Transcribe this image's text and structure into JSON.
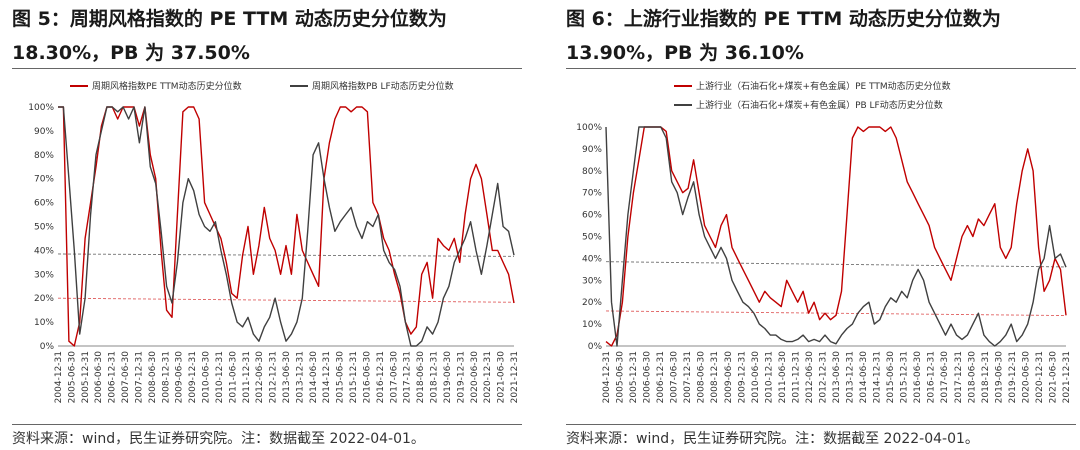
{
  "chart_data": [
    {
      "type": "line",
      "title_line1": "图 5：周期风格指数的 PE TTM 动态历史分位数为",
      "title_line2": "18.30%，PB 为 37.50%",
      "source": "资料来源：wind，民生证券研究院。注：数据截至 2022-04-01。",
      "x_tick_labels": [
        "2004-12-31",
        "2005-06-30",
        "2005-12-31",
        "2006-06-30",
        "2006-12-31",
        "2007-06-30",
        "2007-12-31",
        "2008-06-30",
        "2008-12-31",
        "2009-06-30",
        "2009-12-31",
        "2010-06-30",
        "2010-12-31",
        "2011-06-30",
        "2011-12-31",
        "2012-06-30",
        "2012-12-31",
        "2013-06-30",
        "2013-12-31",
        "2014-06-30",
        "2014-12-31",
        "2015-06-30",
        "2015-12-31",
        "2016-06-30",
        "2016-12-31",
        "2017-06-30",
        "2017-12-31",
        "2018-06-30",
        "2018-12-31",
        "2019-06-30",
        "2019-12-31",
        "2020-06-30",
        "2020-12-31",
        "2021-06-30",
        "2021-12-31"
      ],
      "y_tick_labels": [
        "0%",
        "10%",
        "20%",
        "30%",
        "40%",
        "50%",
        "60%",
        "70%",
        "80%",
        "90%",
        "100%"
      ],
      "ylim": [
        0,
        100
      ],
      "legend_position": "top",
      "colors": {
        "pe": "#c00000",
        "pb": "#404040",
        "pe_ref": "#e06060",
        "pb_ref": "#707070"
      },
      "series": [
        {
          "name": "周期风格指数PE TTM动态历史分位数",
          "color": "#c00000",
          "values": [
            100,
            100,
            2,
            0,
            10,
            45,
            60,
            75,
            92,
            100,
            100,
            95,
            100,
            100,
            100,
            92,
            100,
            80,
            70,
            40,
            15,
            12,
            55,
            98,
            100,
            100,
            95,
            60,
            55,
            50,
            45,
            35,
            22,
            20,
            38,
            50,
            30,
            42,
            58,
            45,
            40,
            30,
            42,
            30,
            55,
            40,
            35,
            30,
            25,
            70,
            85,
            95,
            100,
            100,
            98,
            100,
            100,
            98,
            60,
            55,
            45,
            40,
            30,
            22,
            10,
            5,
            8,
            30,
            35,
            20,
            45,
            42,
            40,
            45,
            35,
            55,
            70,
            76,
            70,
            55,
            40,
            40,
            35,
            30,
            18
          ]
        },
        {
          "name": "周期风格指数PB LF动态历史分位数",
          "color": "#404040",
          "values": [
            100,
            100,
            70,
            40,
            5,
            20,
            55,
            80,
            90,
            100,
            100,
            98,
            100,
            95,
            100,
            85,
            100,
            75,
            68,
            48,
            25,
            18,
            35,
            60,
            70,
            65,
            55,
            50,
            48,
            52,
            40,
            30,
            18,
            10,
            8,
            12,
            5,
            2,
            8,
            12,
            20,
            10,
            2,
            5,
            10,
            20,
            48,
            80,
            85,
            70,
            58,
            48,
            52,
            55,
            58,
            50,
            45,
            52,
            50,
            55,
            40,
            35,
            32,
            25,
            10,
            0,
            0,
            2,
            8,
            5,
            10,
            20,
            25,
            35,
            40,
            45,
            52,
            40,
            30,
            42,
            55,
            68,
            50,
            48,
            38
          ]
        }
      ],
      "reference_lines": [
        {
          "series": "pe",
          "start": 20.0,
          "end": 18.3
        },
        {
          "series": "pb",
          "start": 38.5,
          "end": 37.5
        }
      ]
    },
    {
      "type": "line",
      "title_line1": "图 6：上游行业指数的 PE TTM 动态历史分位数为",
      "title_line2": "13.90%，PB 为 36.10%",
      "source": "资料来源：wind，民生证券研究院。注：数据截至 2022-04-01。",
      "x_tick_labels": [
        "2004-12-31",
        "2005-06-30",
        "2005-12-31",
        "2006-06-30",
        "2006-12-31",
        "2007-06-30",
        "2007-12-31",
        "2008-06-30",
        "2008-12-31",
        "2009-06-30",
        "2009-12-31",
        "2010-06-30",
        "2010-12-31",
        "2011-06-30",
        "2011-12-31",
        "2012-06-30",
        "2012-12-31",
        "2013-06-30",
        "2013-12-31",
        "2014-06-30",
        "2014-12-31",
        "2015-06-30",
        "2015-12-31",
        "2016-06-30",
        "2016-12-31",
        "2017-06-30",
        "2017-12-31",
        "2018-06-30",
        "2018-12-31",
        "2019-06-30",
        "2019-12-31",
        "2020-06-30",
        "2020-12-31",
        "2021-06-30",
        "2021-12-31"
      ],
      "y_tick_labels": [
        "0%",
        "10%",
        "20%",
        "30%",
        "40%",
        "50%",
        "60%",
        "70%",
        "80%",
        "90%",
        "100%"
      ],
      "ylim": [
        0,
        100
      ],
      "legend_position": "top",
      "colors": {
        "pe": "#c00000",
        "pb": "#404040",
        "pe_ref": "#e06060",
        "pb_ref": "#707070"
      },
      "series": [
        {
          "name": "上游行业（石油石化+煤炭+有色金属）PE TTM动态历史分位数",
          "color": "#c00000",
          "values": [
            2,
            0,
            5,
            20,
            50,
            70,
            85,
            100,
            100,
            100,
            100,
            98,
            80,
            75,
            70,
            72,
            85,
            70,
            55,
            50,
            45,
            55,
            60,
            45,
            40,
            35,
            30,
            25,
            20,
            25,
            22,
            20,
            18,
            30,
            25,
            20,
            25,
            15,
            20,
            12,
            15,
            12,
            14,
            25,
            60,
            95,
            100,
            98,
            100,
            100,
            100,
            98,
            100,
            95,
            85,
            75,
            70,
            65,
            60,
            55,
            45,
            40,
            35,
            30,
            40,
            50,
            55,
            50,
            58,
            55,
            60,
            65,
            45,
            40,
            45,
            65,
            80,
            90,
            80,
            45,
            25,
            30,
            40,
            35,
            14
          ]
        },
        {
          "name": "上游行业（石油石化+煤炭+有色金属）PB LF动态历史分位数",
          "color": "#404040",
          "values": [
            100,
            20,
            0,
            30,
            60,
            80,
            100,
            100,
            100,
            100,
            100,
            95,
            75,
            70,
            60,
            68,
            75,
            60,
            50,
            45,
            40,
            45,
            40,
            30,
            25,
            20,
            18,
            15,
            10,
            8,
            5,
            5,
            3,
            2,
            2,
            3,
            5,
            2,
            3,
            2,
            5,
            2,
            1,
            5,
            8,
            10,
            15,
            18,
            20,
            10,
            12,
            18,
            22,
            20,
            25,
            22,
            30,
            35,
            30,
            20,
            15,
            10,
            5,
            10,
            5,
            3,
            5,
            10,
            15,
            5,
            2,
            0,
            2,
            5,
            10,
            2,
            5,
            10,
            20,
            35,
            40,
            55,
            40,
            42,
            36
          ]
        }
      ],
      "reference_lines": [
        {
          "series": "pe",
          "start": 16.0,
          "end": 13.9
        },
        {
          "series": "pb",
          "start": 38.5,
          "end": 36.1
        }
      ]
    }
  ]
}
